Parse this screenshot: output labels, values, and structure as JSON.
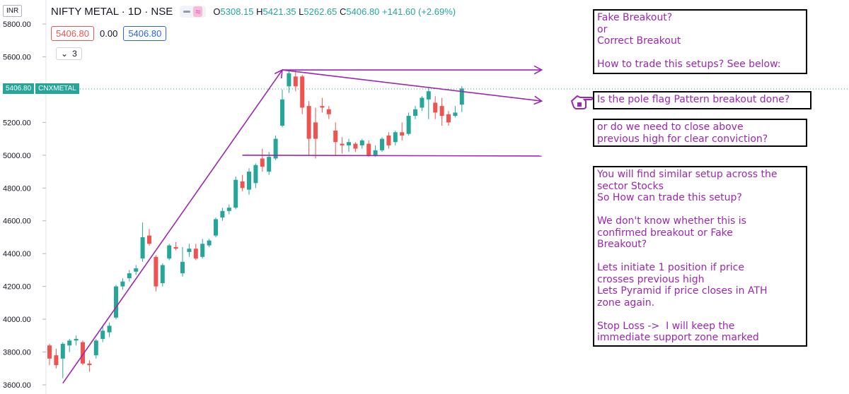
{
  "header": {
    "title": "NIFTY METAL · 1D · NSE",
    "ohlc": [
      {
        "k": "O",
        "v": "5308.15"
      },
      {
        "k": "H",
        "v": "5421.35"
      },
      {
        "k": "L",
        "v": "5262.65"
      },
      {
        "k": "C",
        "v": "5406.80"
      }
    ],
    "change": "+141.60 (+2.69%)",
    "bid": "5406.80",
    "spread": "0.00",
    "ask": "5406.80",
    "indicator_count": "3",
    "currency": "INR"
  },
  "price_tag": {
    "value": "5406.80",
    "symbol": "CNXMETAL"
  },
  "colors": {
    "up": "#26a69a",
    "down": "#ef5350",
    "annotation": "#9c27b0",
    "note_text": "#9c27b0"
  },
  "icons": [
    "eye-icon",
    "wave-icon",
    "chevron-down-icon",
    "pointing-hand-icon"
  ],
  "chart_data": {
    "type": "candlestick",
    "title": "NIFTY METAL · 1D · NSE",
    "ylim": [
      3600,
      5800
    ],
    "y_ticks": [
      "5800.00",
      "5600.00",
      "5400.00",
      "5200.00",
      "5000.00",
      "4800.00",
      "4600.00",
      "4400.00",
      "4200.00",
      "4000.00",
      "3800.00",
      "3600.00"
    ],
    "grid": false,
    "last_price": 5406.8,
    "candles": [
      {
        "o": 3840,
        "h": 3850,
        "l": 3720,
        "c": 3760
      },
      {
        "o": 3780,
        "h": 3820,
        "l": 3700,
        "c": 3720
      },
      {
        "o": 3760,
        "h": 3860,
        "l": 3640,
        "c": 3850
      },
      {
        "o": 3840,
        "h": 3880,
        "l": 3800,
        "c": 3870
      },
      {
        "o": 3870,
        "h": 3900,
        "l": 3840,
        "c": 3880
      },
      {
        "o": 3860,
        "h": 3870,
        "l": 3720,
        "c": 3730
      },
      {
        "o": 3730,
        "h": 3750,
        "l": 3680,
        "c": 3720
      },
      {
        "o": 3780,
        "h": 3880,
        "l": 3760,
        "c": 3870
      },
      {
        "o": 3880,
        "h": 3960,
        "l": 3860,
        "c": 3930
      },
      {
        "o": 3920,
        "h": 3980,
        "l": 3890,
        "c": 3960
      },
      {
        "o": 4010,
        "h": 4210,
        "l": 4000,
        "c": 4200
      },
      {
        "o": 4200,
        "h": 4250,
        "l": 4180,
        "c": 4230
      },
      {
        "o": 4250,
        "h": 4300,
        "l": 4230,
        "c": 4280
      },
      {
        "o": 4290,
        "h": 4330,
        "l": 4270,
        "c": 4310
      },
      {
        "o": 4370,
        "h": 4590,
        "l": 4350,
        "c": 4500
      },
      {
        "o": 4510,
        "h": 4550,
        "l": 4450,
        "c": 4460
      },
      {
        "o": 4380,
        "h": 4390,
        "l": 4170,
        "c": 4200
      },
      {
        "o": 4220,
        "h": 4340,
        "l": 4200,
        "c": 4330
      },
      {
        "o": 4370,
        "h": 4460,
        "l": 4360,
        "c": 4450
      },
      {
        "o": 4440,
        "h": 4470,
        "l": 4420,
        "c": 4430
      },
      {
        "o": 4280,
        "h": 4440,
        "l": 4260,
        "c": 4350
      },
      {
        "o": 4410,
        "h": 4460,
        "l": 4380,
        "c": 4430
      },
      {
        "o": 4430,
        "h": 4460,
        "l": 4360,
        "c": 4370
      },
      {
        "o": 4380,
        "h": 4490,
        "l": 4370,
        "c": 4460
      },
      {
        "o": 4450,
        "h": 4490,
        "l": 4440,
        "c": 4480
      },
      {
        "o": 4510,
        "h": 4620,
        "l": 4500,
        "c": 4610
      },
      {
        "o": 4620,
        "h": 4680,
        "l": 4600,
        "c": 4660
      },
      {
        "o": 4660,
        "h": 4700,
        "l": 4640,
        "c": 4680
      },
      {
        "o": 4680,
        "h": 4870,
        "l": 4670,
        "c": 4850
      },
      {
        "o": 4840,
        "h": 4880,
        "l": 4780,
        "c": 4800
      },
      {
        "o": 4790,
        "h": 4920,
        "l": 4760,
        "c": 4900
      },
      {
        "o": 4830,
        "h": 4950,
        "l": 4800,
        "c": 4940
      },
      {
        "o": 4980,
        "h": 5040,
        "l": 4900,
        "c": 4930
      },
      {
        "o": 4900,
        "h": 5020,
        "l": 4880,
        "c": 4990
      },
      {
        "o": 4980,
        "h": 5120,
        "l": 4970,
        "c": 5100
      },
      {
        "o": 5180,
        "h": 5400,
        "l": 5170,
        "c": 5340
      },
      {
        "o": 5420,
        "h": 5520,
        "l": 5380,
        "c": 5500
      },
      {
        "o": 5480,
        "h": 5520,
        "l": 5390,
        "c": 5420
      },
      {
        "o": 5480,
        "h": 5490,
        "l": 5250,
        "c": 5290
      },
      {
        "o": 5300,
        "h": 5330,
        "l": 5000,
        "c": 5100
      },
      {
        "o": 5200,
        "h": 5290,
        "l": 4980,
        "c": 5100
      },
      {
        "o": 5300,
        "h": 5350,
        "l": 5260,
        "c": 5290
      },
      {
        "o": 5280,
        "h": 5300,
        "l": 5220,
        "c": 5250
      },
      {
        "o": 5150,
        "h": 5200,
        "l": 5000,
        "c": 5080
      },
      {
        "o": 5070,
        "h": 5110,
        "l": 5010,
        "c": 5060
      },
      {
        "o": 5060,
        "h": 5100,
        "l": 5020,
        "c": 5080
      },
      {
        "o": 5070,
        "h": 5080,
        "l": 5020,
        "c": 5040
      },
      {
        "o": 5060,
        "h": 5100,
        "l": 5040,
        "c": 5090
      },
      {
        "o": 5070,
        "h": 5090,
        "l": 4990,
        "c": 5000
      },
      {
        "o": 5000,
        "h": 5060,
        "l": 4990,
        "c": 5030
      },
      {
        "o": 5030,
        "h": 5110,
        "l": 5020,
        "c": 5100
      },
      {
        "o": 5120,
        "h": 5140,
        "l": 5040,
        "c": 5060
      },
      {
        "o": 5080,
        "h": 5150,
        "l": 5060,
        "c": 5140
      },
      {
        "o": 5140,
        "h": 5200,
        "l": 5090,
        "c": 5120
      },
      {
        "o": 5130,
        "h": 5260,
        "l": 5120,
        "c": 5240
      },
      {
        "o": 5240,
        "h": 5300,
        "l": 5220,
        "c": 5280
      },
      {
        "o": 5290,
        "h": 5360,
        "l": 5270,
        "c": 5350
      },
      {
        "o": 5340,
        "h": 5410,
        "l": 5220,
        "c": 5390
      },
      {
        "o": 5320,
        "h": 5360,
        "l": 5220,
        "c": 5260
      },
      {
        "o": 5300,
        "h": 5350,
        "l": 5180,
        "c": 5240
      },
      {
        "o": 5250,
        "h": 5270,
        "l": 5180,
        "c": 5200
      },
      {
        "o": 5240,
        "h": 5300,
        "l": 5230,
        "c": 5260
      },
      {
        "o": 5308.15,
        "h": 5421.35,
        "l": 5262.65,
        "c": 5406.8
      }
    ],
    "annotations": {
      "pole_line": [
        {
          "i": 2,
          "p": 3610
        },
        {
          "i": 35,
          "p": 5520
        }
      ],
      "upper_arrow": [
        {
          "i": 35,
          "p": 5520
        },
        {
          "i": 74,
          "p": 5520
        }
      ],
      "flag_top_arrow": [
        {
          "i": 35,
          "p": 5520
        },
        {
          "i": 74,
          "p": 5330
        }
      ],
      "support_line": [
        {
          "i": 29,
          "p": 5000
        },
        {
          "i": 74,
          "p": 4995
        }
      ]
    }
  },
  "notes": {
    "box1": [
      "Fake Breakout?",
      "or",
      "Correct Breakout",
      "",
      "How to trade this setups? See below:"
    ],
    "box2": [
      "Is the pole flag Pattern breakout done?"
    ],
    "box3": [
      "or do we need to close above",
      "previous high for clear conviction?"
    ],
    "box4": [
      "You will find similar setup across the",
      "sector Stocks",
      "So How can trade this setup?",
      "",
      "We don't know whether this is",
      "confirmed breakout or Fake",
      "Breakout?",
      "",
      "Lets initiate 1 position if price",
      "crosses previous high",
      "Lets Pyramid if price closes in ATH",
      "zone again.",
      "",
      "Stop Loss ->  I will keep the",
      "immediate support zone marked"
    ]
  }
}
